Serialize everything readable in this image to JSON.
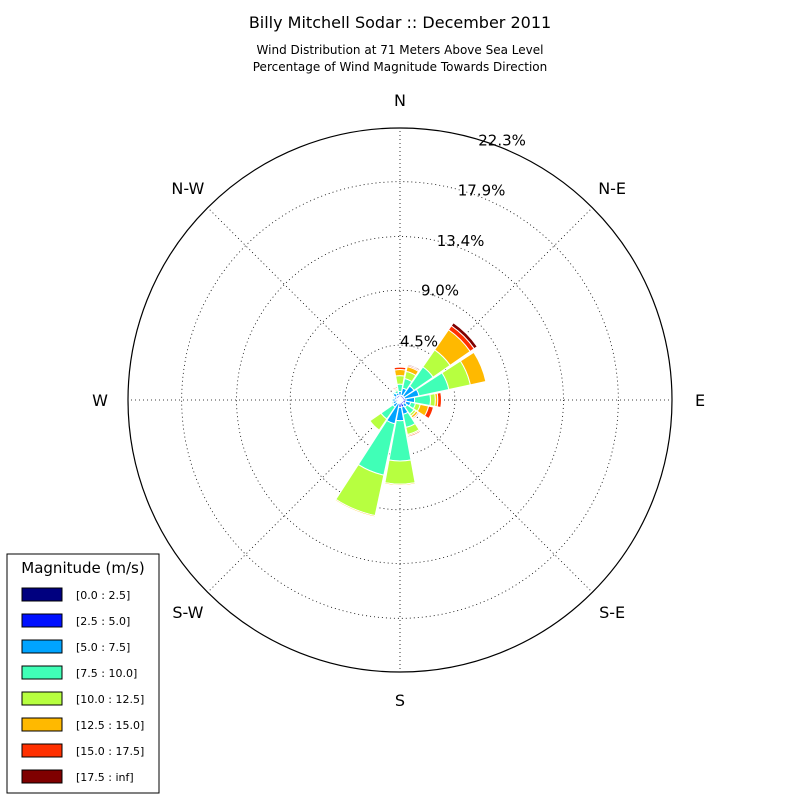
{
  "chart_data": {
    "type": "windrose",
    "title": "Billy Mitchell Sodar :: December 2011",
    "subtitle": [
      "Wind Distribution at 71 Meters Above Sea Level",
      "Percentage of Wind Magnitude Towards Direction"
    ],
    "directions": [
      "N",
      "NNE",
      "NE",
      "ENE",
      "E",
      "ESE",
      "SE",
      "SSE",
      "S",
      "SSW",
      "SW",
      "WSW",
      "W",
      "WNW",
      "NW",
      "NNW"
    ],
    "direction_degrees": [
      0,
      22.5,
      45,
      67.5,
      90,
      112.5,
      135,
      157.5,
      180,
      202.5,
      225,
      247.5,
      270,
      292.5,
      315,
      337.5
    ],
    "compass_labels": [
      "N",
      "N-E",
      "E",
      "S-E",
      "S",
      "S-W",
      "W",
      "N-W"
    ],
    "radial_ticks": [
      4.5,
      9.0,
      13.4,
      17.9,
      22.3
    ],
    "radial_tick_labels": [
      "4.5%",
      "9.0%",
      "13.4%",
      "17.9%",
      "22.3%"
    ],
    "rmax": 22.3,
    "bins": [
      "[0.0 : 2.5]",
      "[2.5 : 5.0]",
      "[5.0 : 7.5]",
      "[7.5 : 10.0]",
      "[10.0 : 12.5]",
      "[12.5 : 15.0]",
      "[15.0 : 17.5]",
      "[17.5 : inf]"
    ],
    "colors": [
      "#00007f",
      "#0010ff",
      "#00a4ff",
      "#40ffb7",
      "#b7ff40",
      "#ffb900",
      "#ff3000",
      "#7f0000"
    ],
    "legend_title": "Magnitude (m/s)",
    "stack_values_percent": [
      [
        0.1,
        0.3,
        0.3,
        0.6,
        0.7,
        0.5,
        0.2,
        0.0
      ],
      [
        0.1,
        0.3,
        0.6,
        0.8,
        0.6,
        0.4,
        0.1,
        0.1
      ],
      [
        0.1,
        0.3,
        1.0,
        1.9,
        1.7,
        2.0,
        0.4,
        0.3
      ],
      [
        0.1,
        0.3,
        1.2,
        2.5,
        1.8,
        1.3,
        0.0,
        0.0
      ],
      [
        0.1,
        0.4,
        0.7,
        1.3,
        0.4,
        0.2,
        0.3,
        0.0
      ],
      [
        0.1,
        0.4,
        0.4,
        0.4,
        0.4,
        0.7,
        0.4,
        0.0
      ],
      [
        0.1,
        0.3,
        0.3,
        0.7,
        0.2,
        0.2,
        0.1,
        0.0
      ],
      [
        0.1,
        0.5,
        0.6,
        1.1,
        0.6,
        0.1,
        0.1,
        0.0
      ],
      [
        0.1,
        0.5,
        1.1,
        3.3,
        1.9,
        0.1,
        0.0,
        0.0
      ],
      [
        0.1,
        0.2,
        1.7,
        4.3,
        3.4,
        0.1,
        0.0,
        0.0
      ],
      [
        0.1,
        0.2,
        0.4,
        1.2,
        1.1,
        0.0,
        0.0,
        0.0
      ],
      [
        0.1,
        0.2,
        0.3,
        0.1,
        0.0,
        0.0,
        0.0,
        0.0
      ],
      [
        0.1,
        0.3,
        0.2,
        0.1,
        0.0,
        0.0,
        0.0,
        0.0
      ],
      [
        0.1,
        0.2,
        0.2,
        0.1,
        0.0,
        0.0,
        0.0,
        0.0
      ],
      [
        0.1,
        0.3,
        0.3,
        0.1,
        0.0,
        0.0,
        0.0,
        0.0
      ],
      [
        0.1,
        0.3,
        0.2,
        0.2,
        0.1,
        0.1,
        0.1,
        0.0
      ]
    ],
    "grid": true,
    "legend_position": "bottom-left"
  }
}
